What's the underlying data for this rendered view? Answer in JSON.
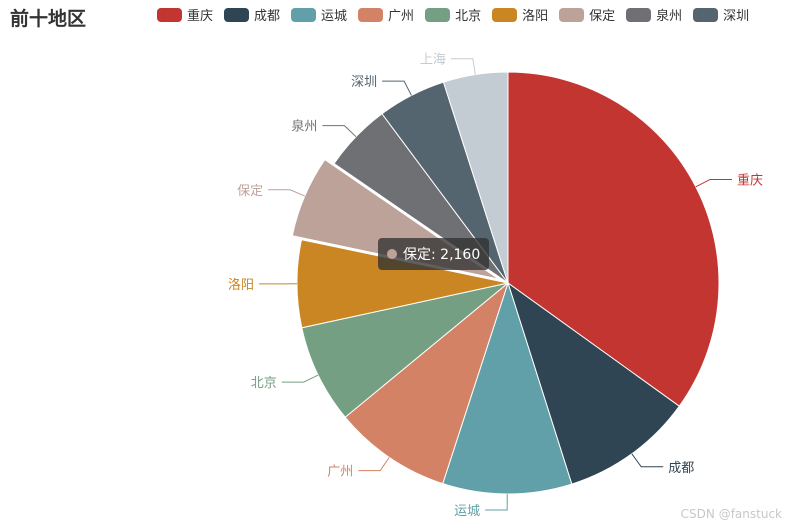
{
  "chart_data": {
    "type": "pie",
    "title": "前十地区",
    "categories": [
      "重庆",
      "成都",
      "运城",
      "广州",
      "北京",
      "洛阳",
      "保定",
      "泉州",
      "深圳",
      "上海"
    ],
    "values": [
      12000,
      3500,
      3400,
      3100,
      2600,
      2300,
      2160,
      1800,
      1800,
      1700
    ],
    "colors": [
      "#c23531",
      "#2f4554",
      "#61a0a8",
      "#d48265",
      "#749f83",
      "#ca8622",
      "#bda29a",
      "#6e7074",
      "#546570",
      "#c4ccd3"
    ],
    "legend": {
      "position": "top",
      "entries": [
        "重庆",
        "成都",
        "运城",
        "广州",
        "北京",
        "洛阳",
        "保定",
        "泉州",
        "深圳"
      ]
    },
    "highlighted": "保定"
  },
  "tooltip": {
    "label": "保定: 2,160",
    "color": "#bda29a"
  },
  "watermark": "CSDN @fanstuck"
}
